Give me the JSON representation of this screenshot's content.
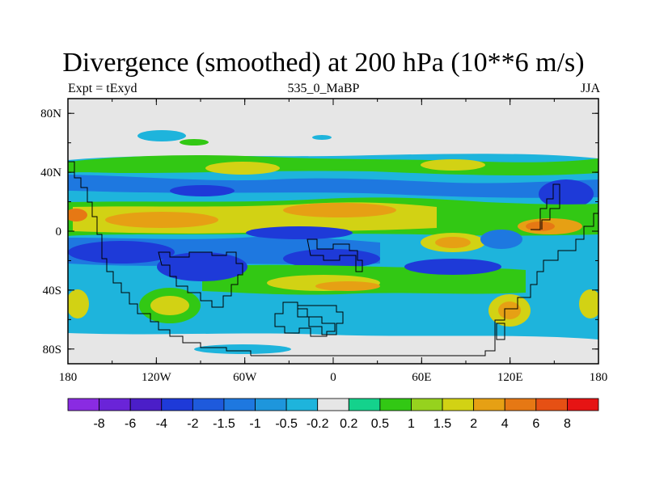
{
  "title": "Divergence (smoothed) at 200 hPa (10**6 m/s)",
  "left_label": "Expt = tExyd",
  "center_label": "535_0_MaBP",
  "right_label": "JJA",
  "axes": {
    "x_ticks": [
      "180",
      "120W",
      "60W",
      "0",
      "60E",
      "120E",
      "180"
    ],
    "y_ticks": [
      "80N",
      "40N",
      "0",
      "40S",
      "80S"
    ]
  },
  "colorbar": {
    "labels": [
      "-8",
      "-6",
      "-4",
      "-2",
      "-1.5",
      "-1",
      "-0.5",
      "-0.2",
      "0.2",
      "0.5",
      "1",
      "1.5",
      "2",
      "4",
      "6",
      "8"
    ],
    "colors": [
      "#8a2be2",
      "#6a24d8",
      "#4b1ec8",
      "#1e3ad8",
      "#1e5adc",
      "#1e78e0",
      "#1e96dc",
      "#1eb4dc",
      "#e6e6e6",
      "#14d28c",
      "#32c814",
      "#96d21e",
      "#d2d214",
      "#e6a014",
      "#e67814",
      "#e65014",
      "#e61414"
    ]
  },
  "map": {
    "background": "#e6e6e6",
    "ocean_free_band_note": "",
    "colors": {
      "strong_neg": "#1e3ad8",
      "neg": "#1e78e0",
      "weak_neg": "#1eb4dc",
      "weak_pos": "#32c814",
      "pos": "#d2d214",
      "strong_pos": "#e6a014",
      "very_strong_pos": "#e67814"
    }
  }
}
